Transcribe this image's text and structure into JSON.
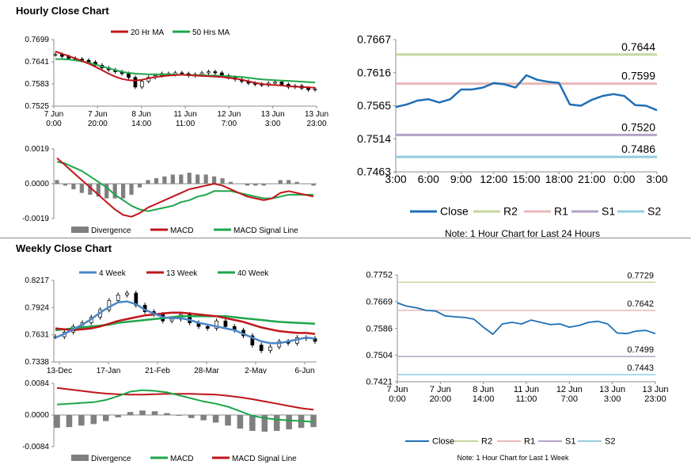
{
  "sections": {
    "hourly_title": "Hourly Close Chart",
    "weekly_title": "Weekly Close Chart"
  },
  "colors": {
    "close": "#1f6fb5",
    "ma_red": "#c0151b",
    "ma_green": "#1ea64a",
    "ma_blue": "#4a86c8",
    "r2": "#c4d79b",
    "r1": "#e6b9b8",
    "s1": "#b3a2c7",
    "s2": "#93cddd",
    "divergence": "#7f7f7f",
    "axis": "#8c8c8c"
  },
  "chart_data": [
    {
      "id": "hourly-price",
      "type": "candlestick",
      "legend": [
        "20 Hr MA",
        "50 Hrs MA"
      ],
      "y_ticks": [
        "0.7699",
        "0.7641",
        "0.7583",
        "0.7525"
      ],
      "ylim": [
        0.7525,
        0.7699
      ],
      "x_ticks": [
        [
          "7 Jun",
          "0:00"
        ],
        [
          "7 Jun",
          "20:00"
        ],
        [
          "8 Jun",
          "14:00"
        ],
        [
          "11 Jun",
          "11:00"
        ],
        [
          "12 Jun",
          "7:00"
        ],
        [
          "13 Jun",
          "3:00"
        ],
        [
          "13 Jun",
          "23:00"
        ]
      ],
      "close": [
        0.766,
        0.7655,
        0.765,
        0.7648,
        0.7645,
        0.764,
        0.7632,
        0.7625,
        0.762,
        0.7615,
        0.761,
        0.76,
        0.7575,
        0.759,
        0.76,
        0.7605,
        0.761,
        0.7608,
        0.7612,
        0.761,
        0.7605,
        0.7608,
        0.7612,
        0.7615,
        0.7612,
        0.7605,
        0.76,
        0.7595,
        0.759,
        0.7585,
        0.7582,
        0.758,
        0.7585,
        0.7588,
        0.7582,
        0.7575,
        0.7578,
        0.7572,
        0.7568,
        0.757
      ],
      "ma20": [
        0.7668,
        0.7662,
        0.7656,
        0.765,
        0.7643,
        0.7636,
        0.7628,
        0.7619,
        0.761,
        0.7602,
        0.7596,
        0.7593,
        0.7592,
        0.7594,
        0.7598,
        0.7601,
        0.7603,
        0.7605,
        0.7606,
        0.7607,
        0.7606,
        0.7605,
        0.7604,
        0.7603,
        0.7602,
        0.7601,
        0.7599,
        0.7597,
        0.7594,
        0.759,
        0.7586,
        0.7583,
        0.7581,
        0.758,
        0.7579,
        0.7577,
        0.7576,
        0.7575,
        0.7574,
        0.7573
      ],
      "ma50": [
        0.7648,
        0.7648,
        0.7647,
        0.7645,
        0.7642,
        0.7638,
        0.7634,
        0.7629,
        0.7624,
        0.7619,
        0.7615,
        0.7612,
        0.761,
        0.7609,
        0.7608,
        0.7608,
        0.7608,
        0.7608,
        0.7607,
        0.7607,
        0.7606,
        0.7606,
        0.7606,
        0.7605,
        0.7605,
        0.7604,
        0.7603,
        0.7602,
        0.7601,
        0.7599,
        0.7597,
        0.7595,
        0.7594,
        0.7593,
        0.7592,
        0.7591,
        0.759,
        0.7589,
        0.7588,
        0.7587
      ]
    },
    {
      "id": "hourly-macd",
      "type": "bar+line",
      "legend": [
        "Divergence",
        "MACD",
        "MACD Signal Line"
      ],
      "y_ticks": [
        "0.0019",
        "0.0000",
        "-0.0019"
      ],
      "ylim": [
        -0.0019,
        0.0019
      ],
      "macd": [
        0.0014,
        0.001,
        0.0006,
        0.0002,
        -0.0002,
        -0.0006,
        -0.001,
        -0.0014,
        -0.0017,
        -0.0018,
        -0.0016,
        -0.0013,
        -0.0011,
        -0.0009,
        -0.0007,
        -0.0005,
        -0.0003,
        -0.0002,
        -0.0001,
        -0.0,
        -0.0001,
        -0.0003,
        -0.0005,
        -0.0007,
        -0.0008,
        -0.0009,
        -0.0008,
        -0.0005,
        -0.0004,
        -0.0005,
        -0.0006,
        -0.0007
      ],
      "signal": [
        0.0012,
        0.0011,
        0.0009,
        0.0007,
        0.0004,
        0.0001,
        -0.0002,
        -0.0006,
        -0.0009,
        -0.0012,
        -0.0014,
        -0.0015,
        -0.0014,
        -0.0013,
        -0.0012,
        -0.001,
        -0.0009,
        -0.0007,
        -0.0006,
        -0.0004,
        -0.0004,
        -0.0004,
        -0.0005,
        -0.0006,
        -0.0007,
        -0.0008,
        -0.0008,
        -0.0007,
        -0.0006,
        -0.0006,
        -0.0006,
        -0.0006
      ],
      "divergence": [
        0.0002,
        -0.0001,
        -0.0003,
        -0.0005,
        -0.0006,
        -0.0007,
        -0.0008,
        -0.0008,
        -0.0008,
        -0.0006,
        -0.0002,
        0.0002,
        0.0003,
        0.0004,
        0.0005,
        0.0005,
        0.0006,
        0.0005,
        0.0005,
        0.0004,
        0.0003,
        0.0001,
        0.0,
        -0.0001,
        -0.0001,
        -0.0001,
        0.0,
        0.0002,
        0.0002,
        0.0001,
        0.0,
        -0.0001
      ]
    },
    {
      "id": "hourly-levels",
      "type": "line",
      "y_ticks": [
        "0.7667",
        "0.7616",
        "0.7565",
        "0.7514",
        "0.7463"
      ],
      "ylim": [
        0.7463,
        0.7667
      ],
      "x_ticks": [
        "3:00",
        "6:00",
        "9:00",
        "12:00",
        "15:00",
        "18:00",
        "21:00",
        "0:00",
        "3:00"
      ],
      "close": [
        0.7563,
        0.7567,
        0.7573,
        0.7575,
        0.757,
        0.7575,
        0.759,
        0.759,
        0.7593,
        0.76,
        0.7598,
        0.7593,
        0.7612,
        0.7605,
        0.7602,
        0.76,
        0.7567,
        0.7565,
        0.7574,
        0.758,
        0.7583,
        0.758,
        0.7566,
        0.7565,
        0.7558
      ],
      "levels": [
        {
          "name": "R2",
          "value": 0.7644,
          "label": "0.7644"
        },
        {
          "name": "R1",
          "value": 0.7599,
          "label": "0.7599"
        },
        {
          "name": "S1",
          "value": 0.752,
          "label": "0.7520"
        },
        {
          "name": "S2",
          "value": 0.7486,
          "label": "0.7486"
        }
      ],
      "legend": [
        "Close",
        "R2",
        "R1",
        "S1",
        "S2"
      ],
      "note": "Note: 1 Hour Chart for Last 24 Hours"
    },
    {
      "id": "weekly-price",
      "type": "candlestick",
      "legend": [
        "4 Week",
        "13 Week",
        "40 Week"
      ],
      "y_ticks": [
        "0.8217",
        "0.7924",
        "0.7631",
        "0.7338"
      ],
      "ylim": [
        0.7338,
        0.8217
      ],
      "x_ticks": [
        "13-Dec",
        "17-Jan",
        "21-Feb",
        "28-Mar",
        "2-May",
        "6-Jun"
      ],
      "close": [
        0.761,
        0.766,
        0.772,
        0.776,
        0.782,
        0.79,
        0.8,
        0.806,
        0.808,
        0.795,
        0.788,
        0.785,
        0.778,
        0.78,
        0.785,
        0.776,
        0.772,
        0.77,
        0.778,
        0.772,
        0.768,
        0.762,
        0.752,
        0.746,
        0.75,
        0.756,
        0.754,
        0.76,
        0.759,
        0.756
      ],
      "ma4": [
        0.76,
        0.764,
        0.769,
        0.774,
        0.78,
        0.787,
        0.793,
        0.798,
        0.799,
        0.796,
        0.79,
        0.786,
        0.782,
        0.781,
        0.781,
        0.779,
        0.776,
        0.774,
        0.772,
        0.77,
        0.768,
        0.764,
        0.76,
        0.756,
        0.754,
        0.754,
        0.756,
        0.758,
        0.76,
        0.759
      ],
      "ma13": [
        0.77,
        0.769,
        0.768,
        0.769,
        0.77,
        0.772,
        0.775,
        0.778,
        0.78,
        0.782,
        0.784,
        0.785,
        0.786,
        0.787,
        0.787,
        0.786,
        0.785,
        0.784,
        0.783,
        0.781,
        0.779,
        0.777,
        0.774,
        0.771,
        0.769,
        0.767,
        0.766,
        0.765,
        0.765,
        0.764
      ],
      "ma40": [
        0.768,
        0.769,
        0.77,
        0.771,
        0.772,
        0.773,
        0.774,
        0.776,
        0.777,
        0.778,
        0.779,
        0.78,
        0.781,
        0.782,
        0.783,
        0.783,
        0.783,
        0.783,
        0.783,
        0.783,
        0.782,
        0.781,
        0.78,
        0.779,
        0.778,
        0.777,
        0.7765,
        0.776,
        0.7755,
        0.775
      ]
    },
    {
      "id": "weekly-macd",
      "type": "bar+line",
      "legend": [
        "Divergence",
        "MACD",
        "MACD Signal Line"
      ],
      "y_ticks": [
        "0.0084",
        "0.0000",
        "-0.0084"
      ],
      "ylim": [
        -0.0084,
        0.0084
      ],
      "macd": [
        0.0028,
        0.003,
        0.0032,
        0.0034,
        0.004,
        0.005,
        0.0062,
        0.0066,
        0.0064,
        0.006,
        0.0052,
        0.0044,
        0.0036,
        0.003,
        0.0022,
        0.001,
        -0.0002,
        -0.0008,
        -0.0012,
        -0.0014,
        -0.0016,
        -0.0018
      ],
      "signal": [
        0.0072,
        0.0068,
        0.0064,
        0.006,
        0.0057,
        0.0055,
        0.0054,
        0.0054,
        0.0055,
        0.0056,
        0.0056,
        0.0056,
        0.0055,
        0.0054,
        0.0051,
        0.0047,
        0.0042,
        0.0036,
        0.003,
        0.0024,
        0.0018,
        0.0014
      ],
      "divergence": [
        -0.0034,
        -0.0032,
        -0.0028,
        -0.0024,
        -0.0016,
        -0.0006,
        0.0008,
        0.0012,
        0.001,
        0.0005,
        -0.0002,
        -0.0008,
        -0.0014,
        -0.002,
        -0.0028,
        -0.0036,
        -0.0042,
        -0.0044,
        -0.0042,
        -0.0038,
        -0.0034,
        -0.0032
      ]
    },
    {
      "id": "weekly-levels",
      "type": "line",
      "y_ticks": [
        "0.7752",
        "0.7669",
        "0.7586",
        "0.7504",
        "0.7421"
      ],
      "ylim": [
        0.7421,
        0.7752
      ],
      "x_ticks": [
        [
          "7 Jun",
          "0:00"
        ],
        [
          "7 Jun",
          "20:00"
        ],
        [
          "8 Jun",
          "14:00"
        ],
        [
          "11 Jun",
          "11:00"
        ],
        [
          "12 Jun",
          "7:00"
        ],
        [
          "13 Jun",
          "3:00"
        ],
        [
          "13 Jun",
          "23:00"
        ]
      ],
      "close": [
        0.7665,
        0.7655,
        0.765,
        0.7642,
        0.764,
        0.7625,
        0.7622,
        0.762,
        0.7615,
        0.759,
        0.7568,
        0.76,
        0.7605,
        0.76,
        0.7612,
        0.7605,
        0.7598,
        0.76,
        0.759,
        0.7595,
        0.7605,
        0.7608,
        0.76,
        0.7572,
        0.757,
        0.7578,
        0.758,
        0.757
      ],
      "levels": [
        {
          "name": "R2",
          "value": 0.7729,
          "label": "0.7729"
        },
        {
          "name": "R1",
          "value": 0.7642,
          "label": "0.7642"
        },
        {
          "name": "S1",
          "value": 0.7499,
          "label": "0.7499"
        },
        {
          "name": "S2",
          "value": 0.7443,
          "label": "0.7443"
        }
      ],
      "legend": [
        "Close",
        "R2",
        "R1",
        "S1",
        "S2"
      ],
      "note": "Note: 1 Hour Chart for Last 1 Week"
    }
  ]
}
